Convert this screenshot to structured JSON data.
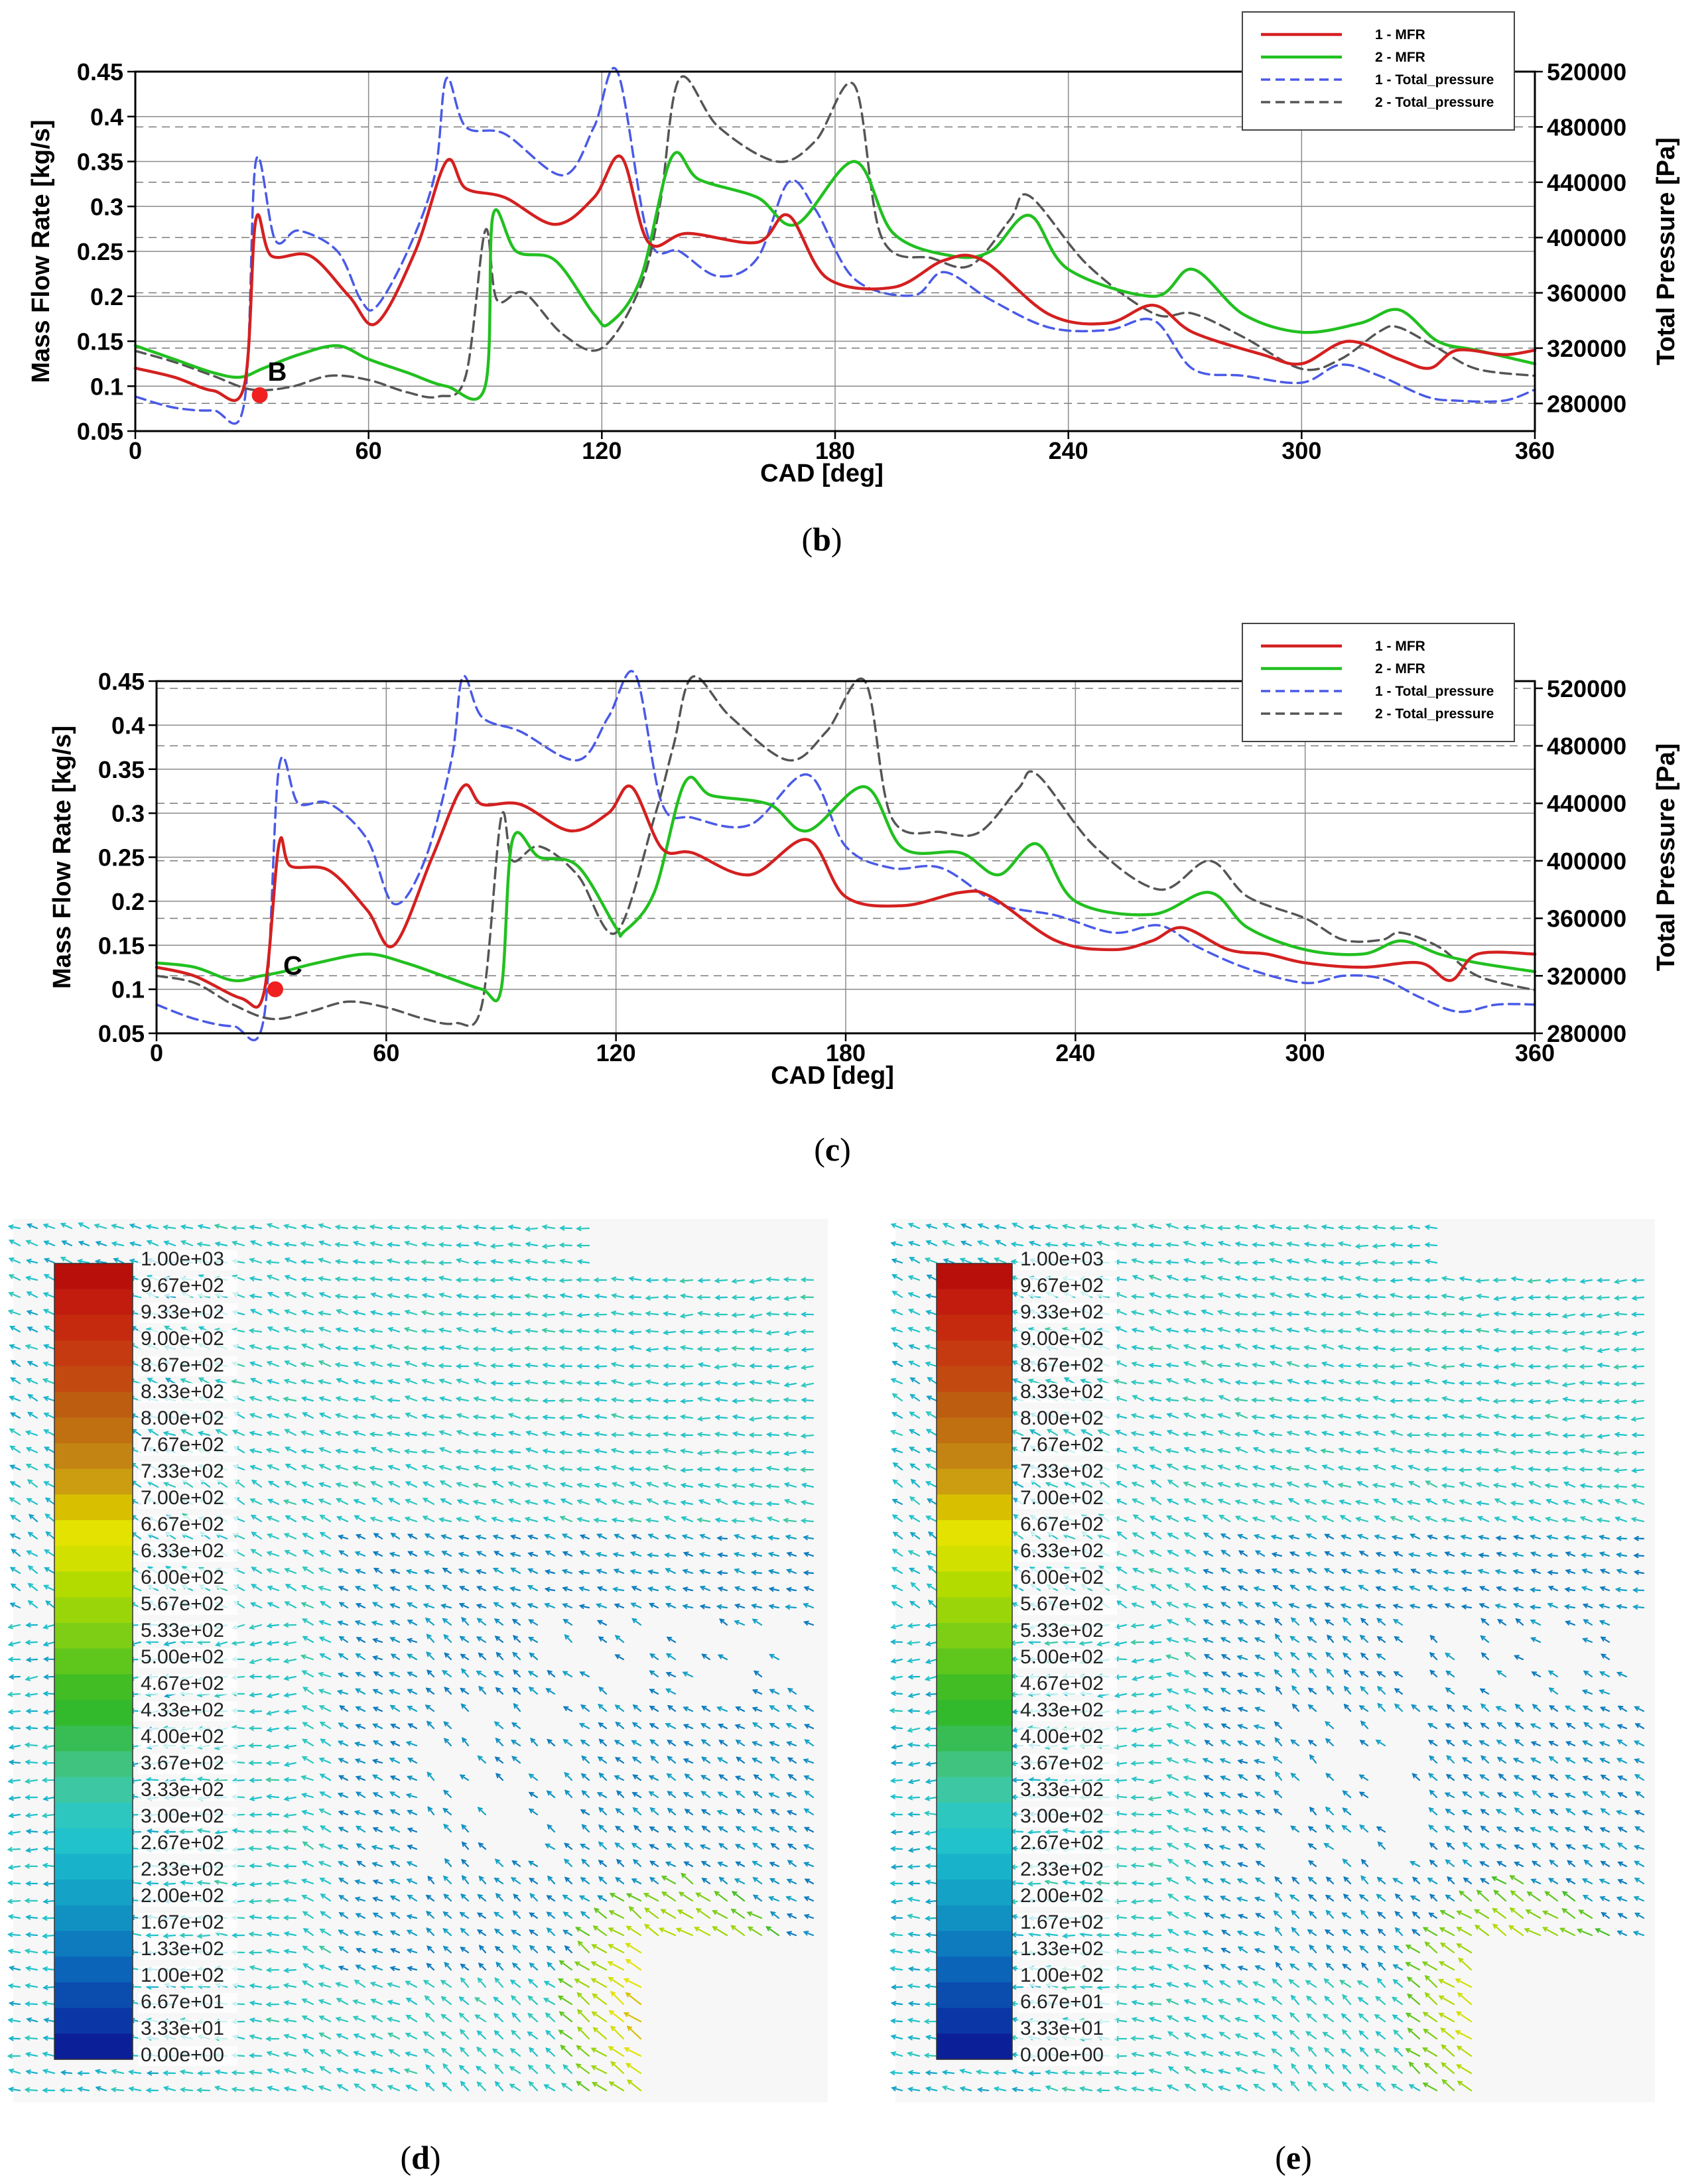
{
  "chart_data": [
    {
      "type": "line",
      "panel": "b",
      "caption": "(b)",
      "caption_letter": "b",
      "xlabel": "CAD [deg]",
      "ylabel": "Mass Flow Rate [kg/s]",
      "y2label": "Total Pressure [Pa]",
      "xlim": [
        0,
        360
      ],
      "ylim": [
        0.05,
        0.45
      ],
      "y2lim": [
        260000,
        520000
      ],
      "x_ticks": [
        "0",
        "60",
        "120",
        "180",
        "240",
        "300",
        "360"
      ],
      "y_ticks": [
        "0.05",
        "0.1",
        "0.15",
        "0.2",
        "0.25",
        "0.3",
        "0.35",
        "0.4",
        "0.45"
      ],
      "y2_ticks": [
        "280000",
        "320000",
        "360000",
        "400000",
        "440000",
        "480000",
        "520000"
      ],
      "annotation": {
        "label": "B",
        "x": 32,
        "y": 0.09
      },
      "legend": {
        "position": "top-right",
        "entries": [
          "1 - MFR",
          "2 - MFR",
          "1 - Total_pressure",
          "2 - Total_pressure"
        ]
      },
      "series": [
        {
          "name": "1 - MFR",
          "axis": "left",
          "style": "solid",
          "color": "#d42020",
          "x": [
            0,
            10,
            20,
            28,
            31,
            35,
            45,
            55,
            62,
            72,
            80,
            85,
            95,
            108,
            118,
            125,
            132,
            142,
            160,
            168,
            178,
            195,
            208,
            218,
            235,
            250,
            262,
            272,
            290,
            300,
            312,
            325,
            333,
            340,
            352,
            360
          ],
          "y": [
            0.12,
            0.11,
            0.095,
            0.1,
            0.285,
            0.245,
            0.245,
            0.2,
            0.17,
            0.25,
            0.35,
            0.32,
            0.31,
            0.28,
            0.31,
            0.355,
            0.26,
            0.27,
            0.26,
            0.29,
            0.22,
            0.21,
            0.24,
            0.24,
            0.18,
            0.17,
            0.19,
            0.16,
            0.135,
            0.125,
            0.15,
            0.13,
            0.12,
            0.14,
            0.135,
            0.14
          ]
        },
        {
          "name": "2 - MFR",
          "axis": "left",
          "style": "solid",
          "color": "#22c020",
          "x": [
            0,
            10,
            20,
            27,
            33,
            42,
            52,
            60,
            70,
            80,
            90,
            92,
            98,
            108,
            118,
            122,
            130,
            138,
            145,
            160,
            170,
            185,
            195,
            210,
            220,
            230,
            240,
            262,
            272,
            285,
            300,
            315,
            325,
            335,
            345,
            360
          ],
          "y": [
            0.145,
            0.13,
            0.115,
            0.11,
            0.12,
            0.135,
            0.145,
            0.13,
            0.115,
            0.1,
            0.1,
            0.29,
            0.25,
            0.24,
            0.18,
            0.17,
            0.22,
            0.355,
            0.33,
            0.31,
            0.28,
            0.35,
            0.27,
            0.245,
            0.25,
            0.29,
            0.23,
            0.2,
            0.23,
            0.18,
            0.16,
            0.17,
            0.185,
            0.15,
            0.14,
            0.125
          ]
        },
        {
          "name": "1 - Total_pressure",
          "axis": "right",
          "style": "dashed",
          "color": "#4a5ae6",
          "x": [
            0,
            10,
            20,
            28,
            31,
            36,
            42,
            52,
            58,
            62,
            70,
            77,
            80,
            85,
            95,
            110,
            118,
            124,
            132,
            140,
            150,
            160,
            168,
            175,
            185,
            200,
            208,
            220,
            235,
            250,
            262,
            272,
            285,
            300,
            310,
            320,
            332,
            340,
            352,
            360
          ],
          "y": [
            285000,
            277000,
            275000,
            280000,
            455000,
            398000,
            405000,
            390000,
            355000,
            350000,
            390000,
            445000,
            515000,
            480000,
            475000,
            445000,
            480000,
            520000,
            400000,
            390000,
            372000,
            385000,
            440000,
            420000,
            370000,
            358000,
            375000,
            355000,
            335000,
            333000,
            340000,
            305000,
            300000,
            295000,
            308000,
            300000,
            285000,
            282000,
            282000,
            290000
          ]
        },
        {
          "name": "2 - Total_pressure",
          "axis": "right",
          "style": "dashed",
          "color": "#555555",
          "x": [
            0,
            10,
            20,
            30,
            40,
            50,
            60,
            70,
            78,
            85,
            90,
            93,
            100,
            110,
            120,
            130,
            135,
            140,
            150,
            165,
            175,
            185,
            192,
            205,
            215,
            225,
            230,
            245,
            262,
            272,
            285,
            300,
            310,
            320,
            325,
            335,
            345,
            360
          ],
          "y": [
            318000,
            310000,
            300000,
            290000,
            292000,
            300000,
            297000,
            288000,
            285000,
            300000,
            405000,
            355000,
            360000,
            330000,
            320000,
            365000,
            425000,
            515000,
            480000,
            455000,
            470000,
            510000,
            400000,
            385000,
            380000,
            413000,
            430000,
            380000,
            345000,
            345000,
            328000,
            305000,
            312000,
            332000,
            335000,
            320000,
            305000,
            300000
          ]
        }
      ]
    },
    {
      "type": "line",
      "panel": "c",
      "caption": "(c)",
      "caption_letter": "c",
      "xlabel": "CAD [deg]",
      "ylabel": "Mass Flow Rate [kg/s]",
      "y2label": "Total Pressure [Pa]",
      "xlim": [
        0,
        360
      ],
      "ylim": [
        0.05,
        0.45
      ],
      "y2lim": [
        280000,
        525000
      ],
      "x_ticks": [
        "0",
        "60",
        "120",
        "180",
        "240",
        "300",
        "360"
      ],
      "y_ticks": [
        "0.05",
        "0.1",
        "0.15",
        "0.2",
        "0.25",
        "0.3",
        "0.35",
        "0.4",
        "0.45"
      ],
      "y2_ticks": [
        "280000",
        "320000",
        "360000",
        "400000",
        "440000",
        "480000",
        "520000"
      ],
      "annotation": {
        "label": "C",
        "x": 31,
        "y": 0.1
      },
      "legend": {
        "position": "top-right",
        "entries": [
          "1 - MFR",
          "2 - MFR",
          "1 - Total_pressure",
          "2 - Total_pressure"
        ]
      },
      "series": [
        {
          "name": "1 - MFR",
          "axis": "left",
          "style": "solid",
          "color": "#d42020",
          "x": [
            0,
            10,
            22,
            28,
            32,
            35,
            45,
            55,
            62,
            72,
            80,
            85,
            95,
            108,
            118,
            124,
            132,
            140,
            155,
            170,
            180,
            195,
            210,
            218,
            235,
            250,
            260,
            268,
            280,
            290,
            300,
            315,
            330,
            338,
            345,
            360
          ],
          "y": [
            0.125,
            0.115,
            0.09,
            0.095,
            0.265,
            0.24,
            0.235,
            0.19,
            0.15,
            0.25,
            0.33,
            0.31,
            0.31,
            0.28,
            0.3,
            0.33,
            0.26,
            0.255,
            0.23,
            0.27,
            0.205,
            0.195,
            0.21,
            0.205,
            0.155,
            0.145,
            0.155,
            0.17,
            0.145,
            0.14,
            0.13,
            0.125,
            0.13,
            0.11,
            0.14,
            0.14
          ]
        },
        {
          "name": "2 - MFR",
          "axis": "left",
          "style": "solid",
          "color": "#22c020",
          "x": [
            0,
            10,
            20,
            27,
            33,
            42,
            55,
            65,
            75,
            85,
            90,
            93,
            100,
            110,
            120,
            122,
            130,
            138,
            145,
            160,
            170,
            185,
            195,
            210,
            220,
            230,
            240,
            260,
            275,
            285,
            300,
            315,
            325,
            335,
            345,
            360
          ],
          "y": [
            0.13,
            0.125,
            0.11,
            0.115,
            0.12,
            0.13,
            0.14,
            0.13,
            0.115,
            0.1,
            0.1,
            0.27,
            0.25,
            0.24,
            0.17,
            0.165,
            0.21,
            0.335,
            0.32,
            0.31,
            0.28,
            0.33,
            0.26,
            0.255,
            0.23,
            0.265,
            0.2,
            0.185,
            0.21,
            0.17,
            0.145,
            0.14,
            0.155,
            0.14,
            0.13,
            0.12
          ]
        },
        {
          "name": "1 - Total_pressure",
          "axis": "right",
          "style": "dashed",
          "color": "#4a5ae6",
          "x": [
            0,
            10,
            20,
            28,
            32,
            37,
            45,
            55,
            62,
            70,
            77,
            80,
            85,
            95,
            110,
            118,
            125,
            132,
            140,
            155,
            170,
            180,
            192,
            205,
            220,
            235,
            250,
            262,
            272,
            285,
            300,
            310,
            320,
            330,
            340,
            350,
            360
          ],
          "y": [
            300000,
            290000,
            285000,
            290000,
            465000,
            440000,
            440000,
            415000,
            370000,
            400000,
            470000,
            528000,
            500000,
            490000,
            470000,
            500000,
            530000,
            440000,
            430000,
            425000,
            460000,
            410000,
            395000,
            395000,
            370000,
            362000,
            350000,
            355000,
            340000,
            325000,
            315000,
            320000,
            318000,
            305000,
            295000,
            300000,
            300000
          ]
        },
        {
          "name": "2 - Total_pressure",
          "axis": "right",
          "style": "dashed",
          "color": "#555555",
          "x": [
            0,
            10,
            20,
            30,
            40,
            50,
            60,
            70,
            78,
            85,
            90,
            93,
            100,
            110,
            120,
            130,
            135,
            140,
            150,
            165,
            175,
            185,
            192,
            205,
            215,
            225,
            230,
            245,
            262,
            275,
            285,
            300,
            310,
            320,
            325,
            335,
            345,
            360
          ],
          "y": [
            320000,
            315000,
            300000,
            290000,
            295000,
            302000,
            298000,
            290000,
            287000,
            300000,
            430000,
            400000,
            410000,
            390000,
            350000,
            430000,
            480000,
            528000,
            500000,
            470000,
            490000,
            525000,
            430000,
            420000,
            420000,
            450000,
            460000,
            410000,
            380000,
            400000,
            375000,
            360000,
            345000,
            345000,
            350000,
            340000,
            320000,
            310000
          ]
        }
      ]
    },
    {
      "type": "heatmap",
      "panel": "d",
      "caption": "(d)",
      "caption_letter": "d",
      "colorbar_labels": [
        "1.00e+03",
        "9.67e+02",
        "9.33e+02",
        "9.00e+02",
        "8.67e+02",
        "8.33e+02",
        "8.00e+02",
        "7.67e+02",
        "7.33e+02",
        "7.00e+02",
        "6.67e+02",
        "6.33e+02",
        "6.00e+02",
        "5.67e+02",
        "5.33e+02",
        "5.00e+02",
        "4.67e+02",
        "4.33e+02",
        "4.00e+02",
        "3.67e+02",
        "3.33e+02",
        "3.00e+02",
        "2.67e+02",
        "2.33e+02",
        "2.00e+02",
        "1.67e+02",
        "1.33e+02",
        "1.00e+02",
        "6.67e+01",
        "3.33e+01",
        "0.00e+00"
      ],
      "colorbar_colors": [
        "#b80f0a",
        "#c11c0e",
        "#c52a0f",
        "#c53a10",
        "#c24a10",
        "#bd5d10",
        "#c07010",
        "#c38413",
        "#cc9d10",
        "#d8c000",
        "#e4e200",
        "#d2e000",
        "#b4db00",
        "#9ad50a",
        "#7dce14",
        "#5fc61c",
        "#42bd24",
        "#33b92c",
        "#37bd53",
        "#3fc37e",
        "#3dc8a3",
        "#2ec7bf",
        "#21c2cb",
        "#18b3ca",
        "#14a2c6",
        "#1191c2",
        "#0d7bbe",
        "#0b64b8",
        "#0a4dae",
        "#0b37a6",
        "#0a1f98"
      ]
    },
    {
      "type": "heatmap",
      "panel": "e",
      "caption": "(e)",
      "caption_letter": "e",
      "colorbar_labels": [
        "1.00e+03",
        "9.67e+02",
        "9.33e+02",
        "9.00e+02",
        "8.67e+02",
        "8.33e+02",
        "8.00e+02",
        "7.67e+02",
        "7.33e+02",
        "7.00e+02",
        "6.67e+02",
        "6.33e+02",
        "6.00e+02",
        "5.67e+02",
        "5.33e+02",
        "5.00e+02",
        "4.67e+02",
        "4.33e+02",
        "4.00e+02",
        "3.67e+02",
        "3.33e+02",
        "3.00e+02",
        "2.67e+02",
        "2.33e+02",
        "2.00e+02",
        "1.67e+02",
        "1.33e+02",
        "1.00e+02",
        "6.67e+01",
        "3.33e+01",
        "0.00e+00"
      ],
      "colorbar_colors": [
        "#b80f0a",
        "#c11c0e",
        "#c52a0f",
        "#c53a10",
        "#c24a10",
        "#bd5d10",
        "#c07010",
        "#c38413",
        "#cc9d10",
        "#d8c000",
        "#e4e200",
        "#d2e000",
        "#b4db00",
        "#9ad50a",
        "#7dce14",
        "#5fc61c",
        "#42bd24",
        "#33b92c",
        "#37bd53",
        "#3fc37e",
        "#3dc8a3",
        "#2ec7bf",
        "#21c2cb",
        "#18b3ca",
        "#14a2c6",
        "#1191c2",
        "#0d7bbe",
        "#0b64b8",
        "#0a4dae",
        "#0b37a6",
        "#0a1f98"
      ]
    }
  ]
}
